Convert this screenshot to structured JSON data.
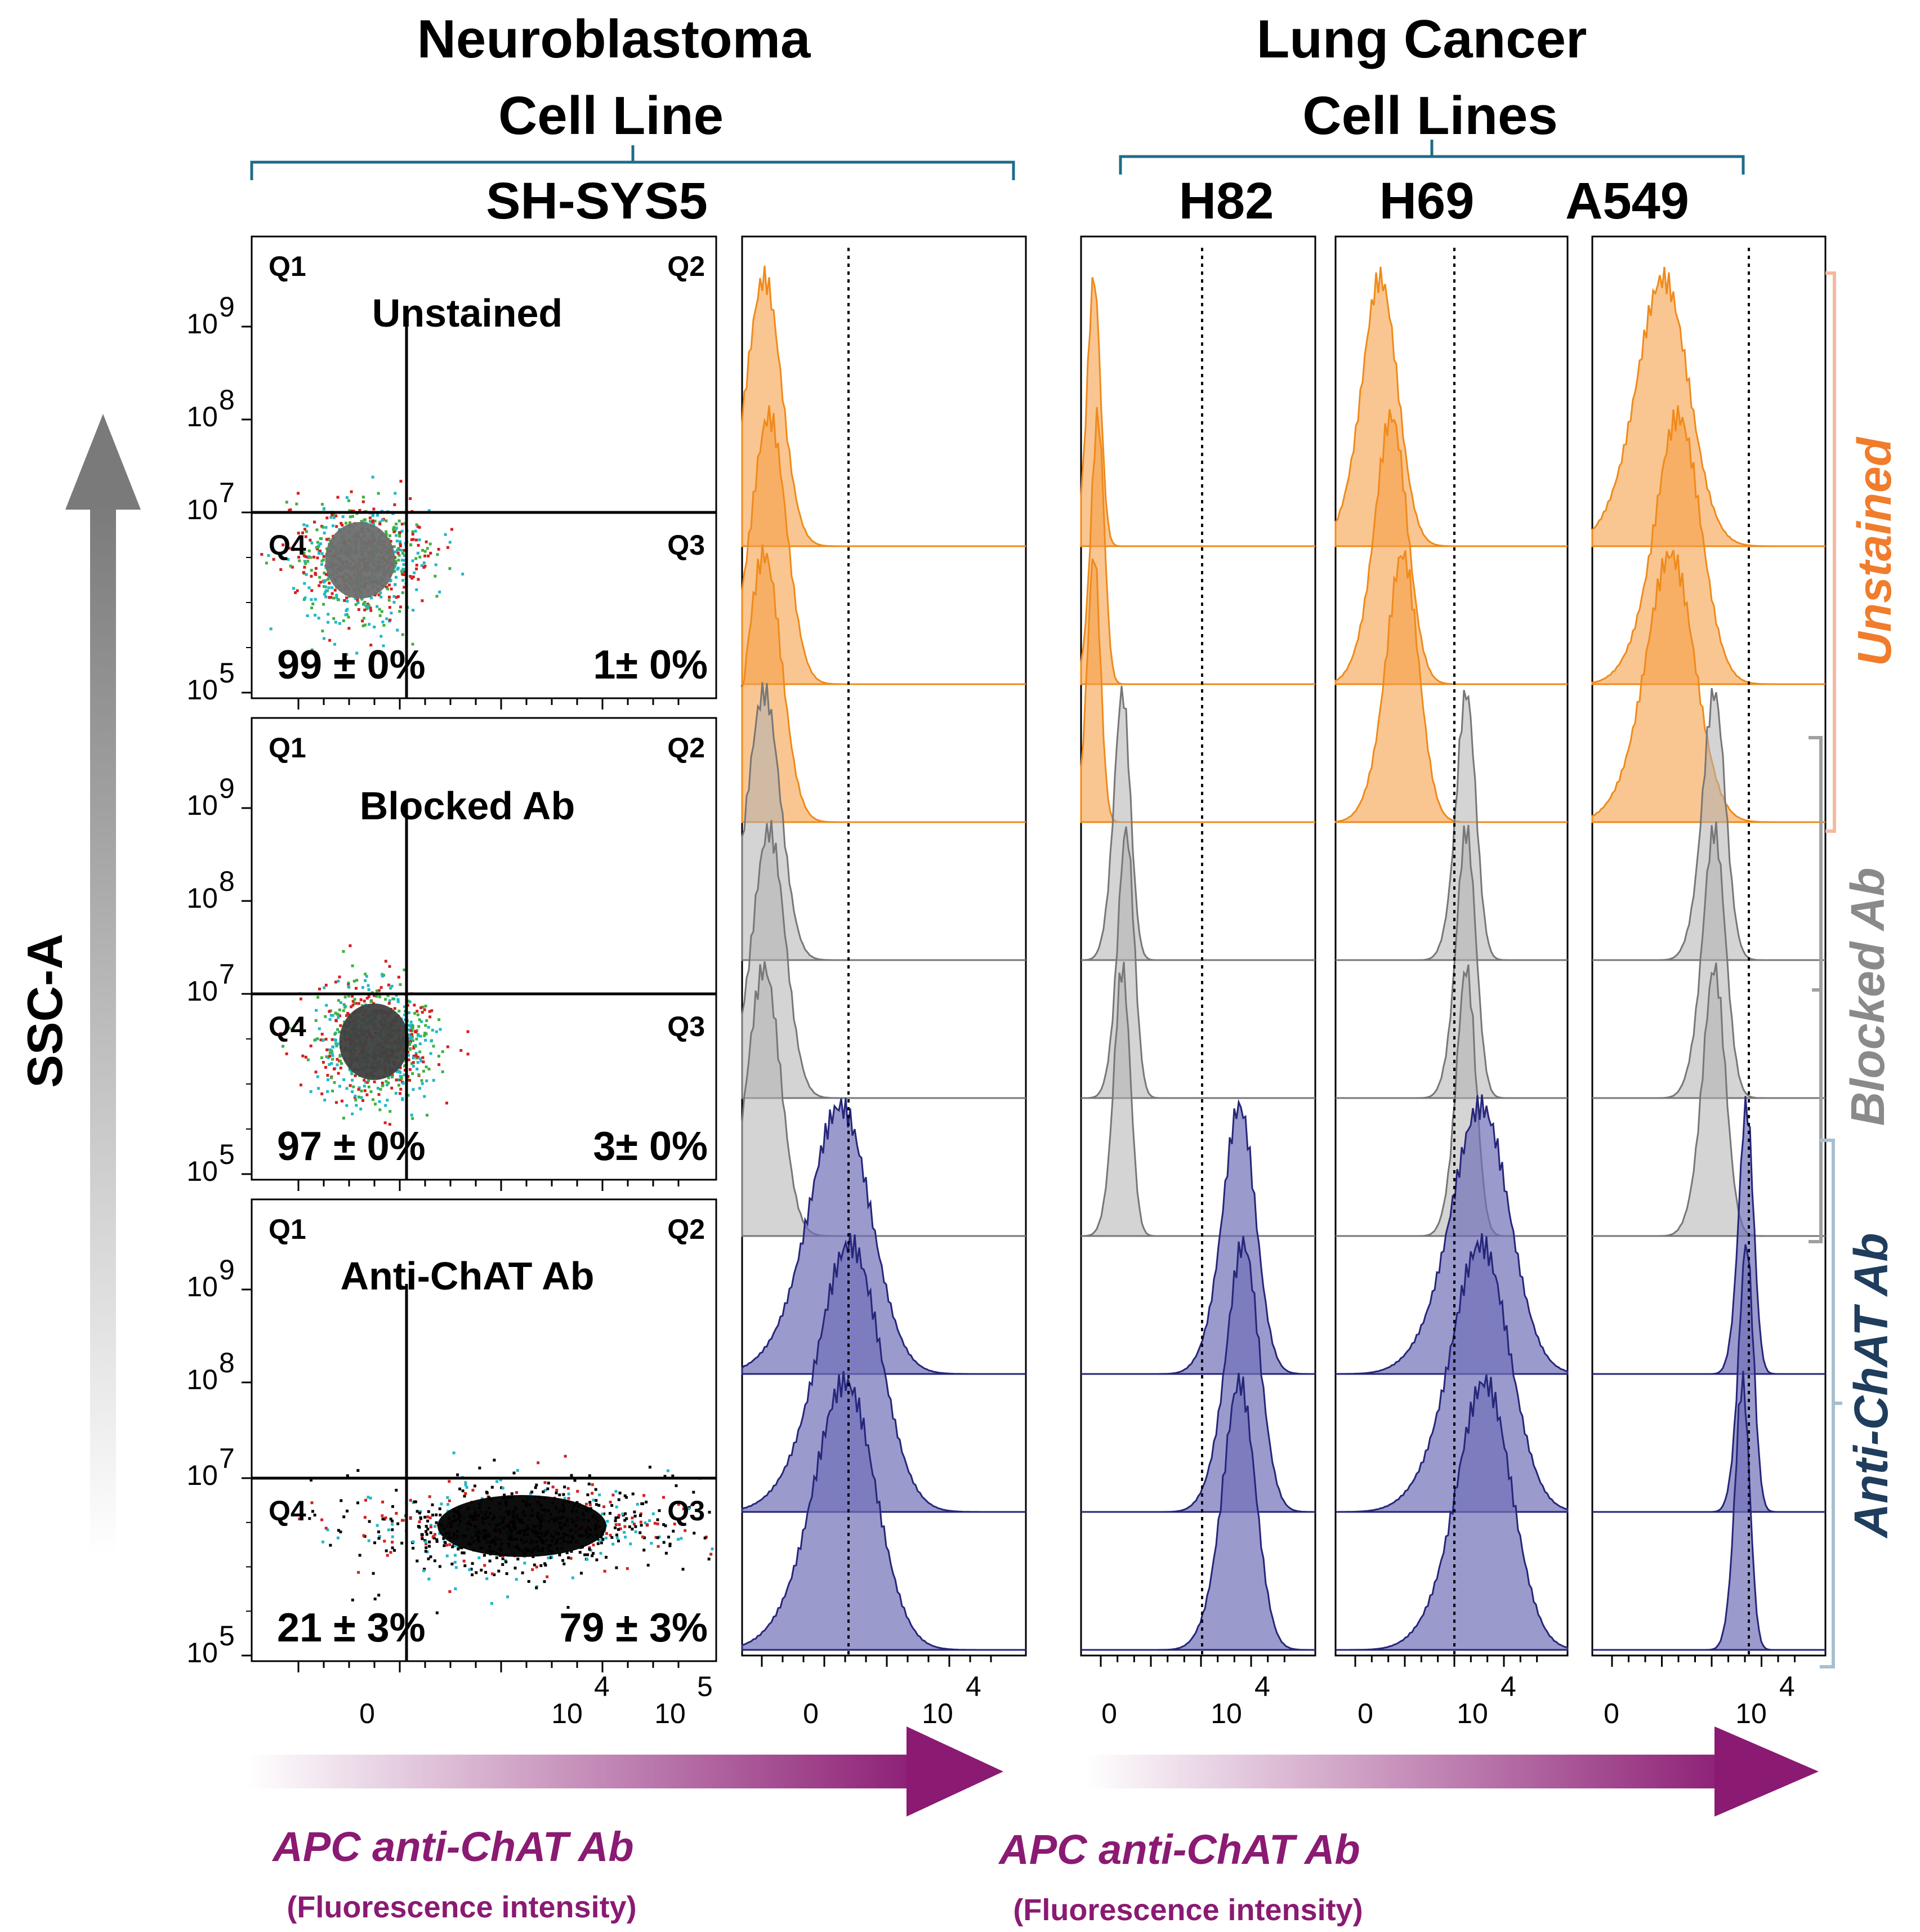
{
  "headers": {
    "neuro_line1": "Neuroblastoma",
    "neuro_line2": "Cell Line",
    "neuro_cell_line": "SH-SYS5",
    "lung_line1": "Lung Cancer",
    "lung_line2": "Cell Lines",
    "lung_cell_lines": [
      "H82",
      "H69",
      "A549"
    ]
  },
  "y_axis_label": "SSC-A",
  "x_axis_label": "APC anti-ChAT Ab",
  "x_axis_sublabel": "(Fluorescence intensity)",
  "conditions": [
    "Unstained",
    "Blocked Ab",
    "Anti-ChAT Ab"
  ],
  "quadrant_labels": [
    "Q1",
    "Q2",
    "Q3",
    "Q4"
  ],
  "scatter_y_ticks": [
    {
      "base": "10",
      "exp": "9"
    },
    {
      "base": "10",
      "exp": "8"
    },
    {
      "base": "10",
      "exp": "7"
    },
    {
      "base": "10",
      "exp": "5"
    }
  ],
  "scatter_x_ticks": [
    {
      "base": "0",
      "exp": ""
    },
    {
      "base": "10",
      "exp": "4"
    },
    {
      "base": "10",
      "exp": "5"
    }
  ],
  "hist_x_ticks": [
    {
      "base": "0",
      "exp": ""
    },
    {
      "base": "10",
      "exp": "4"
    }
  ],
  "colors": {
    "unstained_fill": "#f5a04a",
    "unstained_line": "#f08a1a",
    "blocked_fill": "#b0b0b0",
    "blocked_line": "#777777",
    "antichat_fill": "#6f6fb8",
    "antichat_line": "#26267a",
    "axis_label": "#8a1a72",
    "unstained_label": "#f07c2c",
    "blocked_label": "#8a8a8a",
    "antichat_label": "#1f3d5c"
  },
  "chart_data": [
    {
      "type": "scatter",
      "cell_line": "SH-SYS5",
      "title": "Unstained",
      "ylabel": "SSC-A",
      "xlabel": "APC anti-ChAT Ab",
      "quadrants": {
        "Q4": "99 ± 0%",
        "Q3": "1± 0%"
      },
      "percent_Q4": 99,
      "percent_Q3": 1,
      "sd": 0,
      "population_center_x": 0.55,
      "population_center_y": 6.3
    },
    {
      "type": "scatter",
      "cell_line": "SH-SYS5",
      "title": "Blocked Ab",
      "ylabel": "SSC-A",
      "xlabel": "APC anti-ChAT Ab",
      "quadrants": {
        "Q4": "97 ± 0%",
        "Q3": "3± 0%"
      },
      "percent_Q4": 97,
      "percent_Q3": 3,
      "sd": 0,
      "population_center_x": 0.65,
      "population_center_y": 6.3
    },
    {
      "type": "scatter",
      "cell_line": "SH-SYS5",
      "title": "Anti-ChAT Ab",
      "ylabel": "SSC-A",
      "xlabel": "APC anti-ChAT Ab",
      "quadrants": {
        "Q4": "21 ± 3%",
        "Q3": "79 ± 3%"
      },
      "percent_Q4": 21,
      "percent_Q3": 79,
      "sd": 3,
      "population_center_x": 1.7,
      "population_center_y": 6.3
    },
    {
      "type": "area",
      "title": "SH-SYS5",
      "xlabel": "APC anti-ChAT Ab",
      "x_scale": "biexponential",
      "series": [
        {
          "group": "Unstained",
          "replicate": 1,
          "peak_x": 0.0,
          "spread": 0.17
        },
        {
          "group": "Unstained",
          "replicate": 2,
          "peak_x": 0.02,
          "spread": 0.17
        },
        {
          "group": "Unstained",
          "replicate": 3,
          "peak_x": 0.0,
          "spread": 0.17
        },
        {
          "group": "Blocked Ab",
          "replicate": 1,
          "peak_x": 0.0,
          "spread": 0.16
        },
        {
          "group": "Blocked Ab",
          "replicate": 2,
          "peak_x": 0.02,
          "spread": 0.16
        },
        {
          "group": "Blocked Ab",
          "replicate": 3,
          "peak_x": 0.0,
          "spread": 0.16
        },
        {
          "group": "Anti-ChAT Ab",
          "replicate": 1,
          "peak_x": 0.32,
          "spread": 0.3
        },
        {
          "group": "Anti-ChAT Ab",
          "replicate": 2,
          "peak_x": 0.36,
          "spread": 0.3
        },
        {
          "group": "Anti-ChAT Ab",
          "replicate": 3,
          "peak_x": 0.34,
          "spread": 0.3
        }
      ]
    },
    {
      "type": "area",
      "title": "H82",
      "xlabel": "APC anti-ChAT Ab",
      "x_scale": "biexponential",
      "series": [
        {
          "group": "Unstained",
          "replicate": 1,
          "peak_x": -0.05,
          "spread": 0.08
        },
        {
          "group": "Unstained",
          "replicate": 2,
          "peak_x": -0.03,
          "spread": 0.08
        },
        {
          "group": "Unstained",
          "replicate": 3,
          "peak_x": -0.05,
          "spread": 0.08
        },
        {
          "group": "Blocked Ab",
          "replicate": 1,
          "peak_x": 0.1,
          "spread": 0.1
        },
        {
          "group": "Blocked Ab",
          "replicate": 2,
          "peak_x": 0.12,
          "spread": 0.1
        },
        {
          "group": "Blocked Ab",
          "replicate": 3,
          "peak_x": 0.1,
          "spread": 0.1
        },
        {
          "group": "Anti-ChAT Ab",
          "replicate": 1,
          "peak_x": 0.72,
          "spread": 0.2
        },
        {
          "group": "Anti-ChAT Ab",
          "replicate": 2,
          "peak_x": 0.74,
          "spread": 0.2
        },
        {
          "group": "Anti-ChAT Ab",
          "replicate": 3,
          "peak_x": 0.72,
          "spread": 0.2
        }
      ]
    },
    {
      "type": "area",
      "title": "H69",
      "xlabel": "APC anti-ChAT Ab",
      "x_scale": "biexponential",
      "series": [
        {
          "group": "Unstained",
          "replicate": 1,
          "peak_x": 0.12,
          "spread": 0.22
        },
        {
          "group": "Unstained",
          "replicate": 2,
          "peak_x": 0.18,
          "spread": 0.2
        },
        {
          "group": "Unstained",
          "replicate": 3,
          "peak_x": 0.24,
          "spread": 0.2
        },
        {
          "group": "Blocked Ab",
          "replicate": 1,
          "peak_x": 0.58,
          "spread": 0.12
        },
        {
          "group": "Blocked Ab",
          "replicate": 2,
          "peak_x": 0.58,
          "spread": 0.12
        },
        {
          "group": "Blocked Ab",
          "replicate": 3,
          "peak_x": 0.58,
          "spread": 0.12
        },
        {
          "group": "Anti-ChAT Ab",
          "replicate": 1,
          "peak_x": 0.66,
          "spread": 0.36
        },
        {
          "group": "Anti-ChAT Ab",
          "replicate": 2,
          "peak_x": 0.66,
          "spread": 0.36
        },
        {
          "group": "Anti-ChAT Ab",
          "replicate": 3,
          "peak_x": 0.68,
          "spread": 0.34
        }
      ]
    },
    {
      "type": "area",
      "title": "A549",
      "xlabel": "APC anti-ChAT Ab",
      "x_scale": "biexponential",
      "series": [
        {
          "group": "Unstained",
          "replicate": 1,
          "peak_x": 0.26,
          "spread": 0.32
        },
        {
          "group": "Unstained",
          "replicate": 2,
          "peak_x": 0.34,
          "spread": 0.28
        },
        {
          "group": "Unstained",
          "replicate": 3,
          "peak_x": 0.3,
          "spread": 0.3
        },
        {
          "group": "Blocked Ab",
          "replicate": 1,
          "peak_x": 0.53,
          "spread": 0.14
        },
        {
          "group": "Blocked Ab",
          "replicate": 2,
          "peak_x": 0.53,
          "spread": 0.14
        },
        {
          "group": "Blocked Ab",
          "replicate": 3,
          "peak_x": 0.53,
          "spread": 0.14
        },
        {
          "group": "Anti-ChAT Ab",
          "replicate": 1,
          "peak_x": 0.7,
          "spread": 0.09
        },
        {
          "group": "Anti-ChAT Ab",
          "replicate": 2,
          "peak_x": 0.7,
          "spread": 0.09
        },
        {
          "group": "Anti-ChAT Ab",
          "replicate": 3,
          "peak_x": 0.68,
          "spread": 0.09
        }
      ]
    }
  ]
}
